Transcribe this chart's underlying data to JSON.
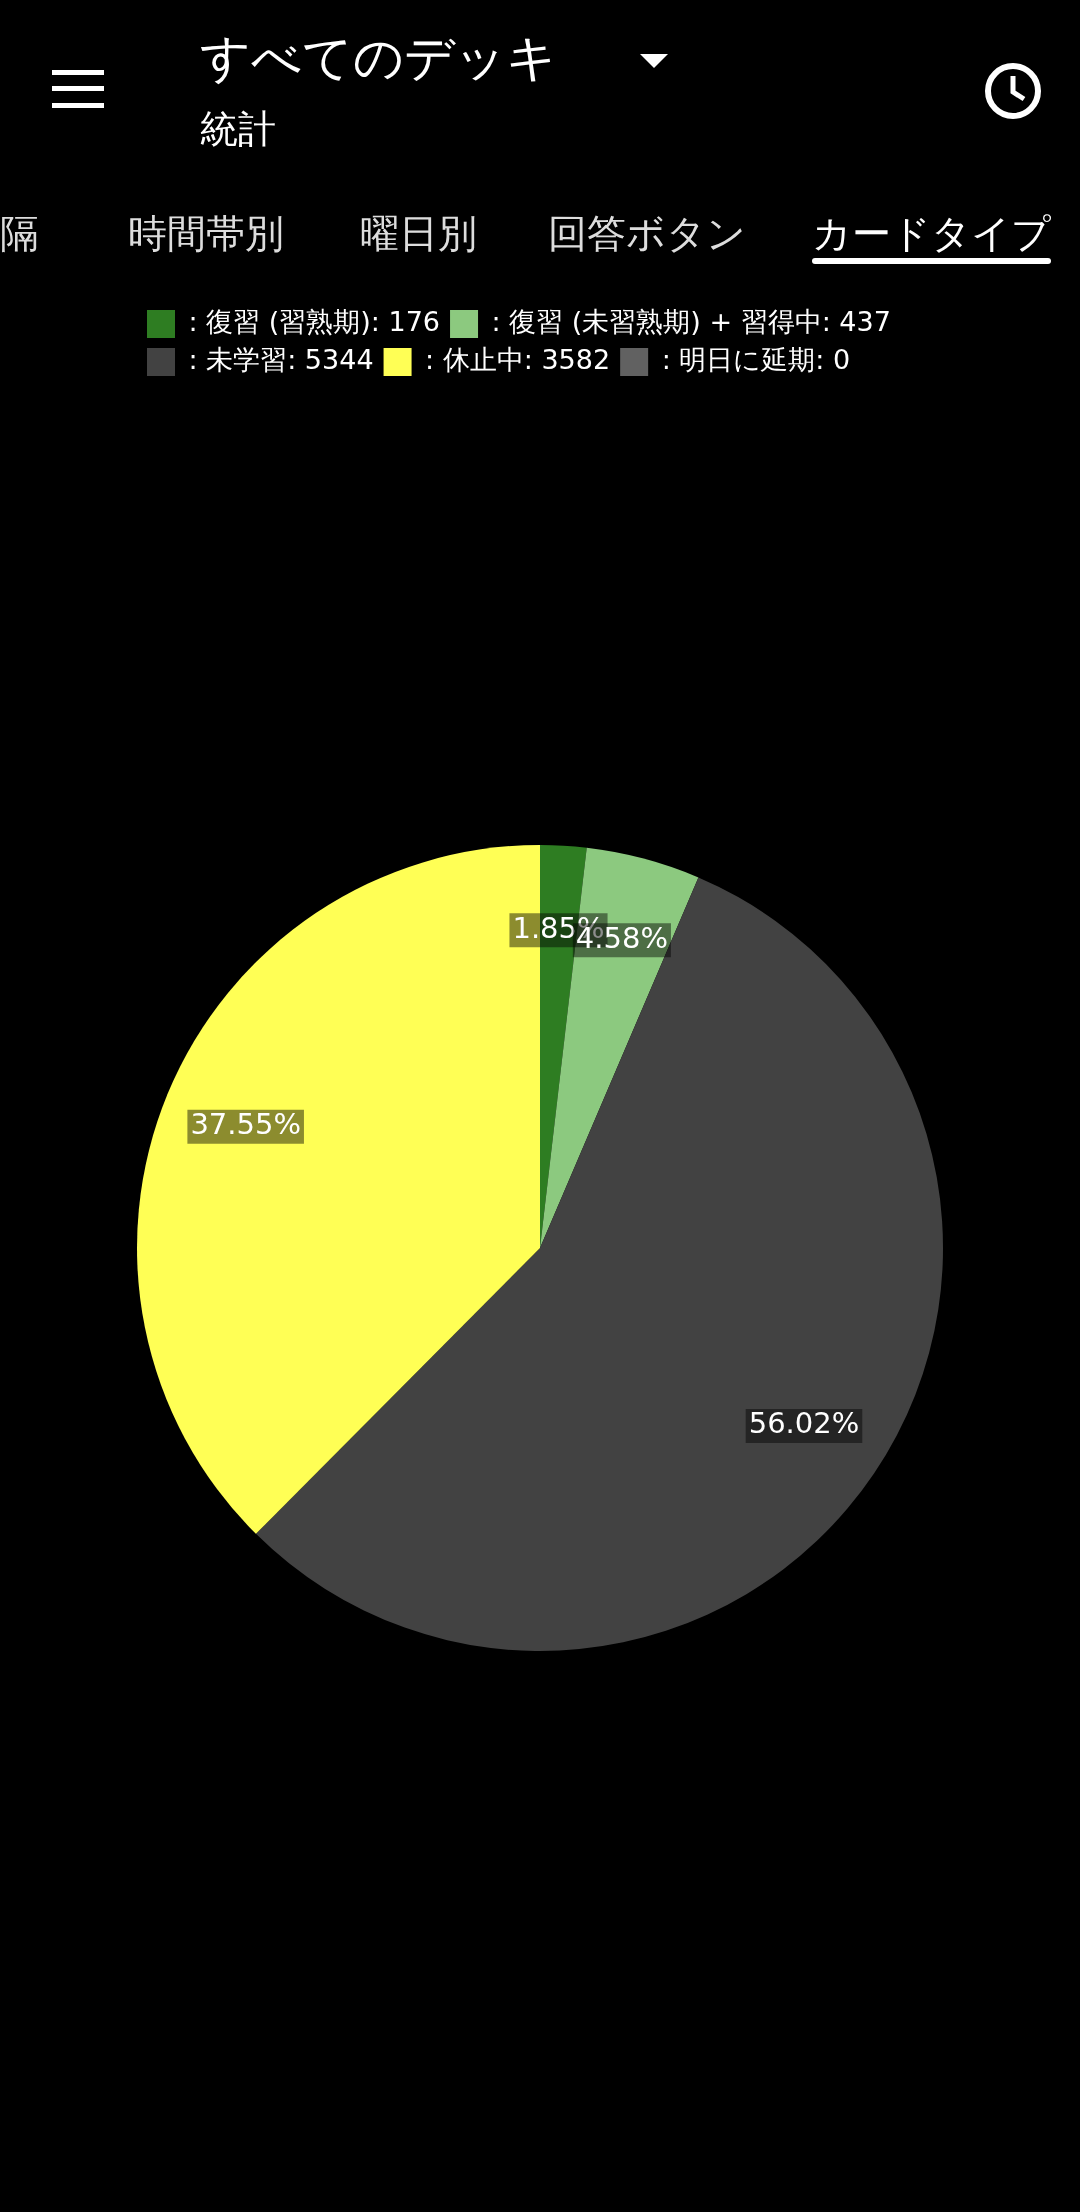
{
  "chart_data": {
    "type": "pie",
    "title": "すべてのデッキ",
    "subtitle": "統計",
    "annotations": [
      "隔",
      "時間帯別",
      "曜日別",
      "回答ボタン",
      "カードタイプ"
    ],
    "categories": [
      ": 復習 (習熟期): 176",
      ": 復習 (未習熟期) + 習得中: 437",
      ": 未学習: 5344",
      ": 休止中: 3582",
      ": 明日に延期: 0"
    ],
    "values": [
      1.85,
      4.58,
      56.02,
      37.55,
      0
    ],
    "colors": [
      "#2e7d22",
      "#8cc97f",
      "#424242",
      "#ffff55",
      "#616161"
    ],
    "value_labels": [
      "1.85%",
      "4.58%",
      "56.02%",
      "37.55%",
      null
    ],
    "legend": "top left"
  }
}
